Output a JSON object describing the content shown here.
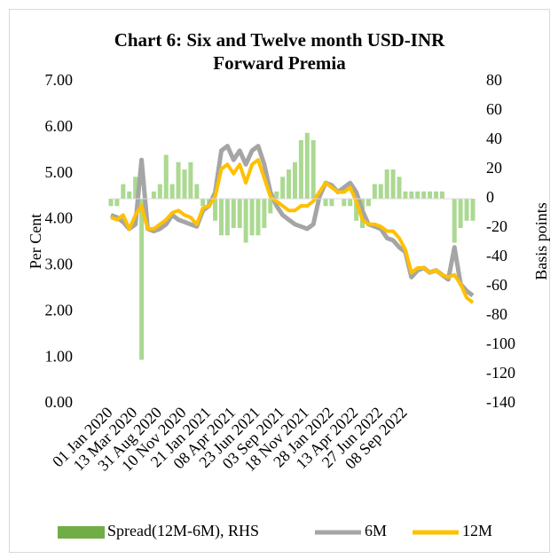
{
  "chart_data": {
    "type": "combo",
    "title": "Chart 6: Six and Twelve month USD-INR Forward Premia",
    "ylabel": "Per Cent",
    "y2label": "Basis points",
    "categories": [
      "01 Jan 2020",
      null,
      null,
      null,
      "13 Mar 2020",
      null,
      null,
      null,
      "31 Aug 2020",
      null,
      null,
      null,
      "10 Nov 2020",
      null,
      null,
      null,
      "21 Jan 2021",
      null,
      null,
      null,
      "08 Apr 2021",
      null,
      null,
      null,
      "23 Jun 2021",
      null,
      null,
      null,
      "03 Sep 2021",
      null,
      null,
      null,
      "18 Nov 2021",
      null,
      null,
      null,
      "28 Jan 2022",
      null,
      null,
      null,
      "13 Apr 2022",
      null,
      null,
      null,
      "27 Jun 2022",
      null,
      null,
      null,
      "08 Sep 2022",
      null,
      null,
      null,
      null,
      null,
      null,
      null,
      null,
      null,
      null,
      null
    ],
    "series": [
      {
        "name": "Spread(12M-6M), RHS",
        "type": "bar",
        "axis": "y2",
        "color": "#8fcc6c",
        "values": [
          -5,
          -5,
          10,
          5,
          15,
          -110,
          0,
          5,
          10,
          30,
          10,
          25,
          20,
          25,
          10,
          -5,
          -5,
          -15,
          -25,
          -25,
          -20,
          -20,
          -30,
          -25,
          -25,
          -20,
          -10,
          5,
          15,
          20,
          25,
          40,
          45,
          40,
          5,
          -5,
          -5,
          0,
          -5,
          -5,
          -15,
          -20,
          -5,
          10,
          10,
          20,
          20,
          15,
          5,
          5,
          5,
          5,
          5,
          5,
          5,
          0,
          -30,
          -20,
          -15,
          -15
        ]
      },
      {
        "name": "6M",
        "type": "line",
        "color": "#a5a5a5",
        "values": [
          4.1,
          4.05,
          3.95,
          3.8,
          3.9,
          5.3,
          3.8,
          3.75,
          3.8,
          3.9,
          4.1,
          4.0,
          3.95,
          3.9,
          3.85,
          4.2,
          4.3,
          4.6,
          5.5,
          5.6,
          5.3,
          5.5,
          5.2,
          5.5,
          5.6,
          5.2,
          4.6,
          4.3,
          4.1,
          4.0,
          3.9,
          3.85,
          3.8,
          3.9,
          4.5,
          4.8,
          4.75,
          4.6,
          4.7,
          4.8,
          4.6,
          4.2,
          3.9,
          3.85,
          3.8,
          3.6,
          3.55,
          3.4,
          3.3,
          2.75,
          2.9,
          2.95,
          2.85,
          2.9,
          2.8,
          2.7,
          3.4,
          2.6,
          2.45,
          2.35
        ]
      },
      {
        "name": "12M",
        "type": "line",
        "color": "#ffc000",
        "values": [
          4.05,
          4.0,
          4.1,
          3.8,
          4.1,
          4.3,
          3.8,
          3.8,
          3.9,
          4.0,
          4.15,
          4.2,
          4.1,
          4.05,
          3.9,
          4.25,
          4.3,
          4.5,
          5.1,
          5.2,
          5.0,
          5.2,
          4.8,
          5.2,
          5.3,
          4.9,
          4.5,
          4.4,
          4.3,
          4.2,
          4.2,
          4.3,
          4.3,
          4.4,
          4.6,
          4.8,
          4.7,
          4.6,
          4.6,
          4.7,
          4.4,
          4.0,
          3.9,
          3.9,
          3.85,
          3.75,
          3.75,
          3.6,
          3.35,
          2.85,
          2.95,
          2.95,
          2.85,
          2.9,
          2.8,
          2.75,
          2.8,
          2.6,
          2.3,
          2.2
        ]
      }
    ],
    "ylim": [
      0,
      7
    ],
    "yticks": [
      {
        "value": 0,
        "label": "0.00"
      },
      {
        "value": 1,
        "label": "1.00"
      },
      {
        "value": 2,
        "label": "2.00"
      },
      {
        "value": 3,
        "label": "3.00"
      },
      {
        "value": 4,
        "label": "4.00"
      },
      {
        "value": 5,
        "label": "5.00"
      },
      {
        "value": 6,
        "label": "6.00"
      },
      {
        "value": 7,
        "label": "7.00"
      }
    ],
    "y2lim": [
      -140,
      80
    ],
    "y2ticks": [
      -140,
      -120,
      -100,
      -80,
      -60,
      -40,
      -20,
      0,
      20,
      40,
      60,
      80
    ],
    "legend": "bottom"
  }
}
